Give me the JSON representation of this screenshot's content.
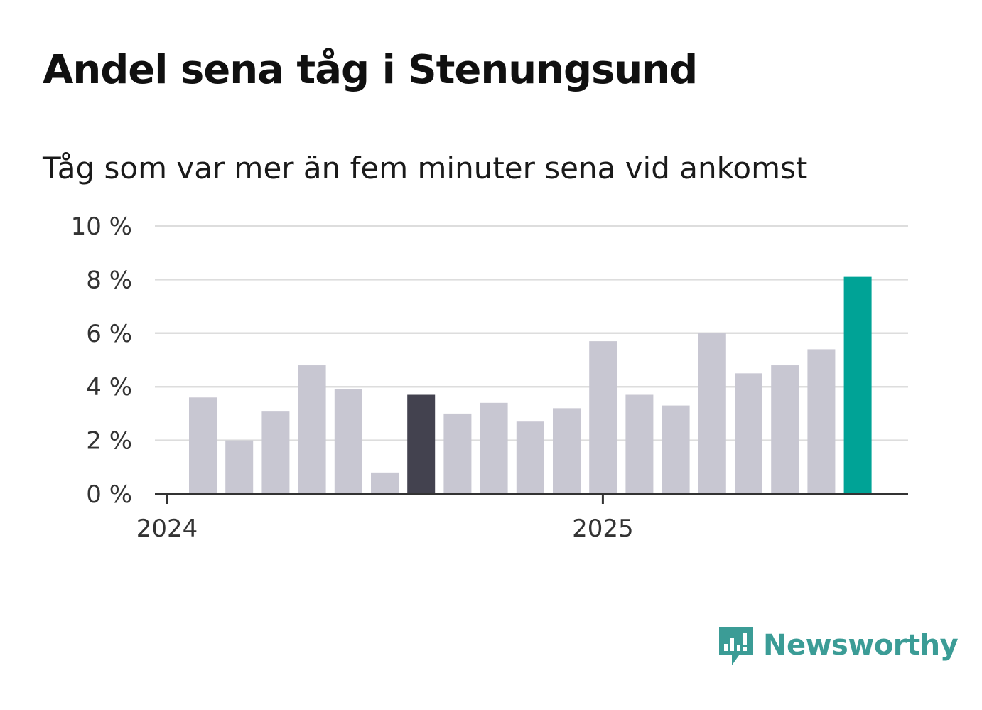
{
  "title": "Andel sena tåg i Stenungsund",
  "subtitle": "Tåg som var mer än fem minuter sena vid ankomst",
  "brand": {
    "name": "Newsworthy",
    "icon": "newsworthy-logo-icon",
    "color": "#3b9c96"
  },
  "colors": {
    "default_bar": "#c8c7d2",
    "highlight_dark": "#43424f",
    "highlight_accent": "#00a396",
    "grid": "#dddddd",
    "axis": "#333333"
  },
  "chart_data": {
    "type": "bar",
    "title": "Andel sena tåg i Stenungsund",
    "subtitle": "Tåg som var mer än fem minuter sena vid ankomst",
    "xlabel": "",
    "ylabel": "",
    "ylim": [
      0,
      10
    ],
    "yticks": [
      {
        "value": 0,
        "label": "0 %"
      },
      {
        "value": 2,
        "label": "2 %"
      },
      {
        "value": 4,
        "label": "4 %"
      },
      {
        "value": 6,
        "label": "6 %"
      },
      {
        "value": 8,
        "label": "8 %"
      },
      {
        "value": 10,
        "label": "10 %"
      }
    ],
    "xticks": [
      {
        "index": 0,
        "label": "2024"
      },
      {
        "index": 12,
        "label": "2025"
      }
    ],
    "grid": true,
    "values": [
      3.6,
      2.0,
      3.1,
      4.8,
      3.9,
      0.8,
      3.7,
      3.0,
      3.4,
      2.7,
      3.2,
      5.7,
      3.7,
      3.3,
      6.0,
      4.5,
      4.8,
      5.4,
      8.1
    ],
    "bar_colors": [
      "default",
      "default",
      "default",
      "default",
      "default",
      "default",
      "highlight_dark",
      "default",
      "default",
      "default",
      "default",
      "default",
      "default",
      "default",
      "default",
      "default",
      "default",
      "default",
      "highlight_accent"
    ]
  }
}
